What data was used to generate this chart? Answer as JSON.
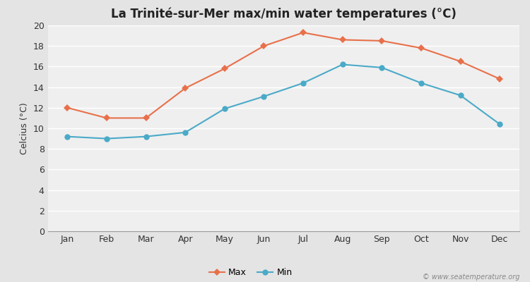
{
  "title": "La Trinité-sur-Mer max/min water temperatures (°C)",
  "ylabel": "Celcius (°C)",
  "months": [
    "Jan",
    "Feb",
    "Mar",
    "Apr",
    "May",
    "Jun",
    "Jul",
    "Aug",
    "Sep",
    "Oct",
    "Nov",
    "Dec"
  ],
  "max_temps": [
    12.0,
    11.0,
    11.0,
    13.9,
    15.8,
    18.0,
    19.3,
    18.6,
    18.5,
    17.8,
    16.5,
    14.8
  ],
  "min_temps": [
    9.2,
    9.0,
    9.2,
    9.6,
    11.9,
    13.1,
    14.4,
    16.2,
    15.9,
    14.4,
    13.2,
    10.4
  ],
  "max_color": "#e8704a",
  "min_color": "#4aaac8",
  "bg_color": "#e4e4e4",
  "plot_bg_color": "#efefef",
  "grid_color": "#ffffff",
  "ylim": [
    0,
    20
  ],
  "yticks": [
    0,
    2,
    4,
    6,
    8,
    10,
    12,
    14,
    16,
    18,
    20
  ],
  "legend_labels": [
    "Max",
    "Min"
  ],
  "watermark": "© www.seatemperature.org",
  "title_fontsize": 12,
  "label_fontsize": 9,
  "tick_fontsize": 9,
  "legend_fontsize": 9
}
